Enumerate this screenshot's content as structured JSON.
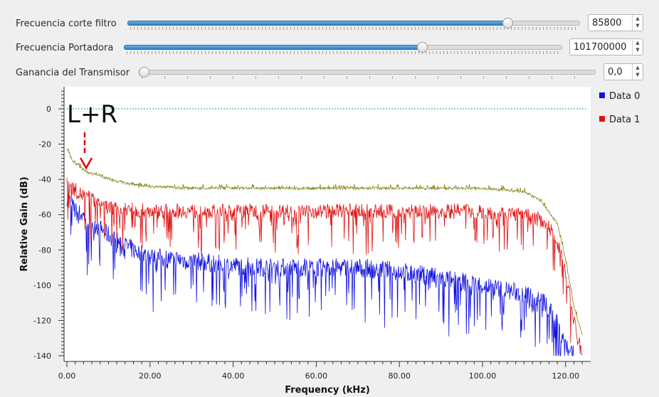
{
  "controls": [
    {
      "label": "Frecuencia corte filtro",
      "value": "85800",
      "level": 0.84
    },
    {
      "label": "Frecuencia Portadora",
      "value": "101700000",
      "level": 0.68
    },
    {
      "label": "Ganancia del Transmisor",
      "value": "0,0",
      "level": 0.0
    }
  ],
  "annotation": {
    "text": "L+R",
    "color": "#e00000"
  },
  "chart_data": {
    "type": "line",
    "xlabel": "Frequency (kHz)",
    "ylabel": "Relative Gain (dB)",
    "xlim": [
      0,
      125
    ],
    "ylim": [
      -140,
      10
    ],
    "x_ticks": [
      0,
      20,
      40,
      60,
      80,
      100,
      120
    ],
    "x_tick_labels": [
      "0.00",
      "20.00",
      "40.00",
      "60.00",
      "80.00",
      "100.00",
      "120.00"
    ],
    "y_ticks": [
      0,
      -20,
      -40,
      -60,
      -80,
      -100,
      -120,
      -140
    ],
    "y_tick_labels": [
      "0",
      "-20",
      "-40",
      "-60",
      "-80",
      "-100",
      "-120",
      "-140"
    ],
    "reference_line": {
      "y": 0,
      "color": "#1a9a9a"
    },
    "legend": [
      {
        "name": "Data 0",
        "color": "#1010e0"
      },
      {
        "name": "Data 1",
        "color": "#e01010"
      }
    ],
    "series": [
      {
        "color": "#1010e0",
        "x": [
          0,
          2,
          5,
          8,
          12,
          16,
          20,
          30,
          40,
          50,
          60,
          70,
          80,
          90,
          100,
          110,
          115,
          118,
          120,
          122
        ],
        "y": [
          -50,
          -58,
          -62,
          -68,
          -75,
          -80,
          -84,
          -86,
          -89,
          -90,
          -90,
          -90,
          -92,
          -96,
          -100,
          -105,
          -110,
          -122,
          -132,
          -140
        ]
      },
      {
        "color": "#e01010",
        "x": [
          0,
          3,
          5,
          10,
          20,
          40,
          60,
          80,
          100,
          110,
          115,
          118,
          120,
          122,
          124
        ],
        "y": [
          -42,
          -48,
          -50,
          -56,
          -58,
          -58,
          -58,
          -58,
          -58,
          -60,
          -64,
          -75,
          -92,
          -120,
          -140
        ]
      },
      {
        "color": "#808010",
        "x": [
          0,
          1,
          3,
          5,
          8,
          12,
          16,
          20,
          30,
          40,
          50,
          60,
          70,
          80,
          90,
          100,
          110,
          114,
          118,
          120,
          122,
          124
        ],
        "y": [
          -22,
          -28,
          -33,
          -36,
          -38,
          -41,
          -43,
          -44,
          -45,
          -45,
          -45,
          -45,
          -45,
          -45,
          -45,
          -45,
          -47,
          -52,
          -65,
          -85,
          -112,
          -128
        ]
      }
    ]
  }
}
